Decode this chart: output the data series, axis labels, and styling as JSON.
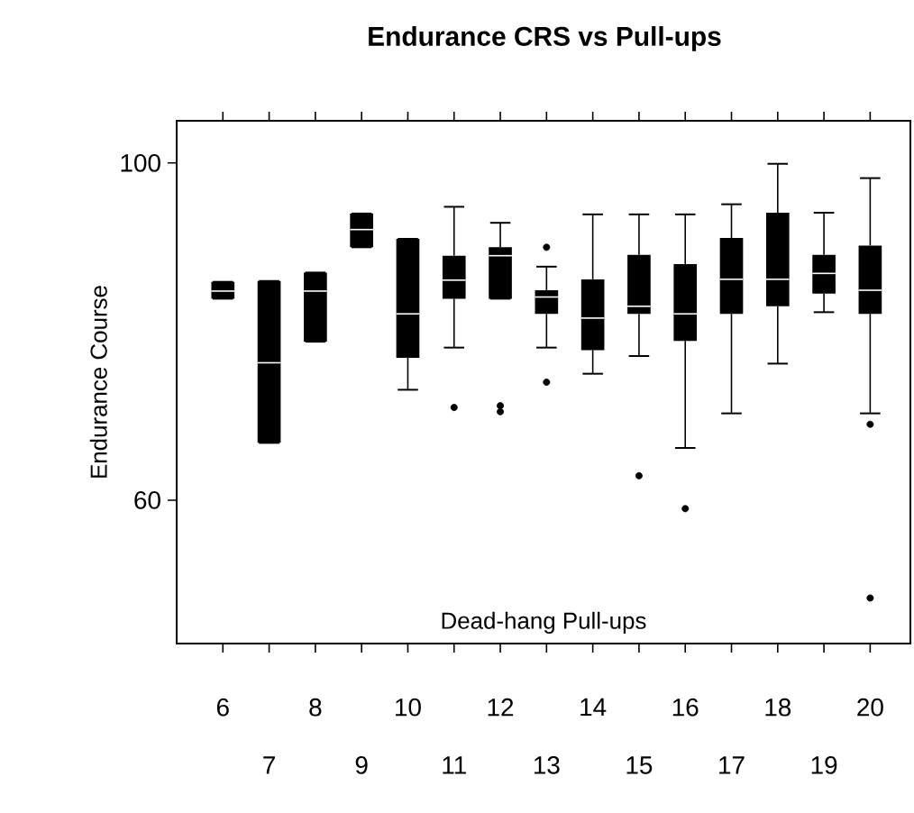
{
  "chart_data": {
    "type": "box",
    "title": "Endurance CRS vs Pull-ups",
    "xlabel": "Dead-hang Pull-ups",
    "ylabel": "Endurance Course",
    "categories": [
      "6",
      "7",
      "8",
      "9",
      "10",
      "11",
      "12",
      "13",
      "14",
      "15",
      "16",
      "17",
      "18",
      "19",
      "20"
    ],
    "color": "#000000",
    "ylim": [
      43,
      105
    ],
    "yticks": [
      60,
      100
    ],
    "boxes": [
      {
        "low": 83.9,
        "q1": 83.9,
        "median": 84.8,
        "q3": 85.9,
        "high": 85.9
      },
      {
        "low": 66.8,
        "q1": 66.8,
        "median": 76.3,
        "q3": 86.0,
        "high": 86.0
      },
      {
        "low": 78.8,
        "q1": 78.8,
        "median": 84.8,
        "q3": 87.0,
        "high": 87.0
      },
      {
        "low": 90.0,
        "q1": 90.0,
        "median": 92.1,
        "q3": 94.0,
        "high": 94.0
      },
      {
        "low": 73.1,
        "q1": 76.9,
        "median": 82.1,
        "q3": 91.0,
        "high": 91.0
      },
      {
        "low": 78.1,
        "q1": 83.9,
        "median": 86.1,
        "q3": 89.0,
        "high": 94.8,
        "outliers": [
          71.0
        ]
      },
      {
        "low": 83.9,
        "q1": 83.9,
        "median": 89.0,
        "q3": 90.0,
        "high": 92.9,
        "outliers": [
          71.2,
          70.5
        ]
      },
      {
        "low": 78.1,
        "q1": 82.1,
        "median": 84.1,
        "q3": 84.9,
        "high": 87.7,
        "outliers": [
          90.0,
          74.0
        ]
      },
      {
        "low": 75.0,
        "q1": 77.8,
        "median": 81.6,
        "q3": 86.2,
        "high": 93.9
      },
      {
        "low": 77.1,
        "q1": 82.1,
        "median": 83.0,
        "q3": 89.1,
        "high": 93.9,
        "outliers": [
          62.9
        ]
      },
      {
        "low": 66.2,
        "q1": 78.9,
        "median": 82.1,
        "q3": 88.0,
        "high": 93.9,
        "outliers": [
          59.0
        ]
      },
      {
        "low": 70.3,
        "q1": 82.1,
        "median": 86.2,
        "q3": 91.1,
        "high": 95.1
      },
      {
        "low": 76.2,
        "q1": 83.0,
        "median": 86.2,
        "q3": 94.1,
        "high": 99.9
      },
      {
        "low": 82.3,
        "q1": 84.5,
        "median": 86.9,
        "q3": 89.1,
        "high": 94.1
      },
      {
        "low": 70.3,
        "q1": 82.1,
        "median": 84.9,
        "q3": 90.2,
        "high": 98.2,
        "outliers": [
          69.0,
          48.4
        ]
      }
    ]
  }
}
